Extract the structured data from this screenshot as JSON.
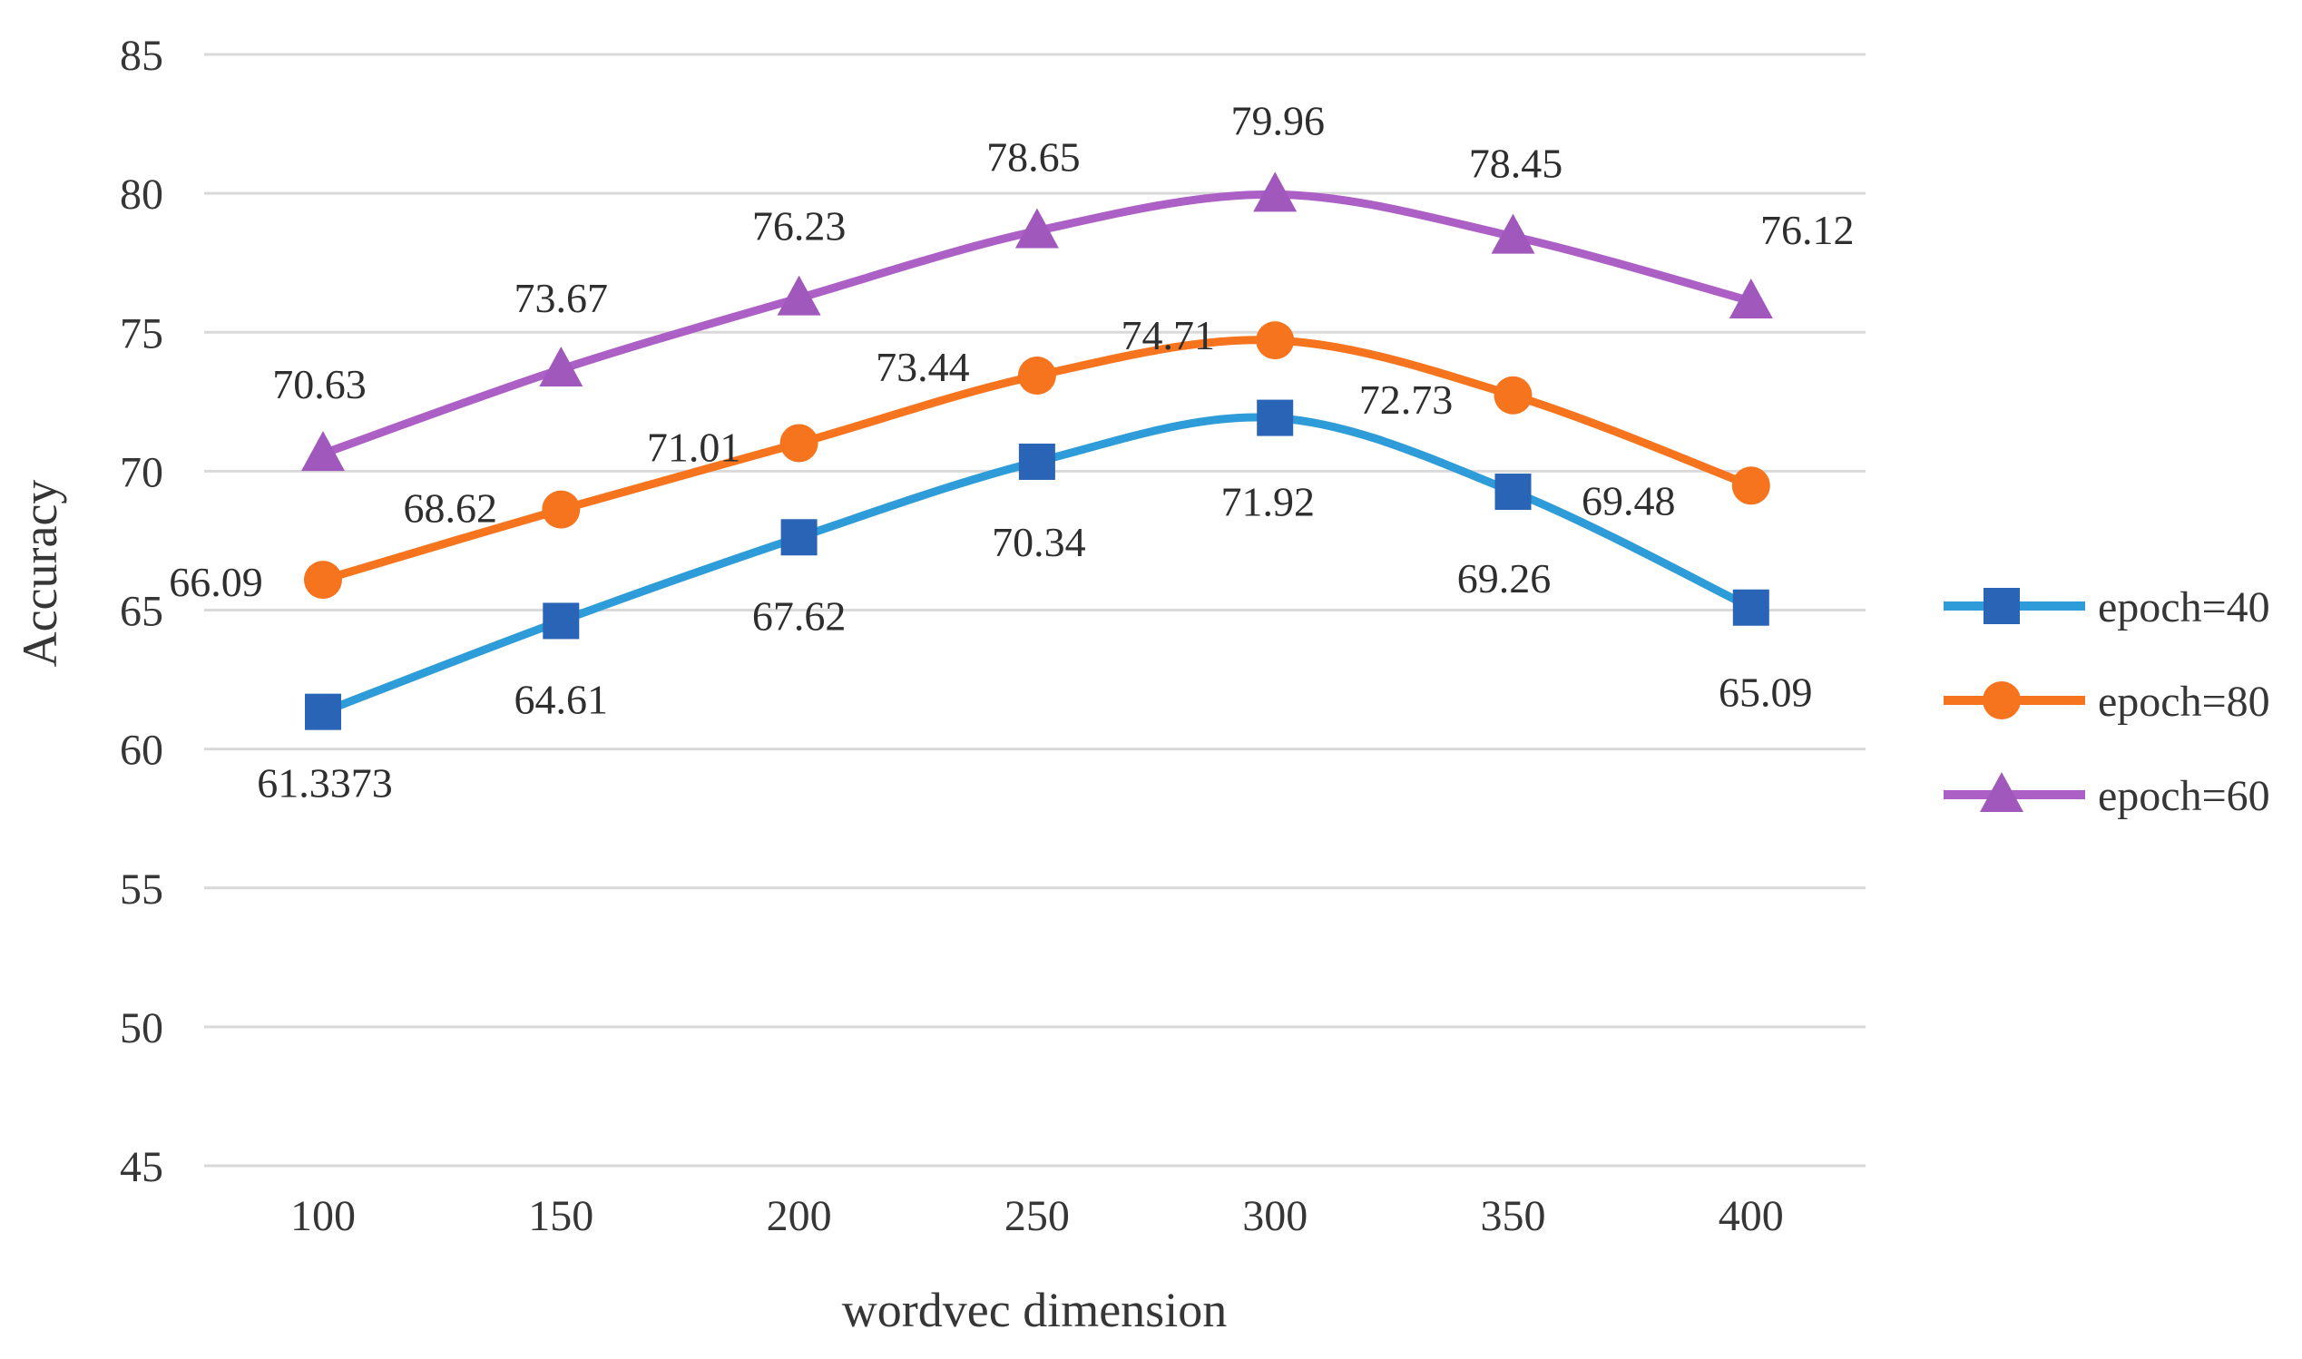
{
  "chart_data": {
    "type": "line",
    "title": "",
    "xlabel": "wordvec dimension",
    "ylabel": "Accuracy",
    "categories": [
      "100",
      "150",
      "200",
      "250",
      "300",
      "350",
      "400"
    ],
    "x_values": [
      100,
      150,
      200,
      250,
      300,
      350,
      400
    ],
    "ylim": [
      45,
      85
    ],
    "yticks": [
      "45",
      "50",
      "55",
      "60",
      "65",
      "70",
      "75",
      "80",
      "85"
    ],
    "grid": "horizontal",
    "grid_color": "#d9d9d9",
    "line_smoothing": true,
    "legend_position": "right",
    "series": [
      {
        "name": "epoch=40",
        "marker": "square",
        "line_color": "#2e9cd8",
        "marker_color": "#2a64b6",
        "values": [
          61.3373,
          64.61,
          67.62,
          70.34,
          71.92,
          69.26,
          65.09
        ],
        "labels": [
          "61.3373",
          "64.61",
          "67.62",
          "70.34",
          "71.92",
          "69.26",
          "65.09"
        ],
        "label_offsets": [
          [
            2,
            78
          ],
          [
            0,
            86
          ],
          [
            0,
            86
          ],
          [
            2,
            88
          ],
          [
            -8,
            92
          ],
          [
            -10,
            95
          ],
          [
            16,
            93
          ]
        ]
      },
      {
        "name": "epoch=80",
        "marker": "circle",
        "line_color": "#f6741d",
        "marker_color": "#f6741d",
        "values": [
          66.09,
          68.62,
          71.01,
          73.44,
          74.71,
          72.73,
          69.48
        ],
        "labels": [
          "66.09",
          "68.62",
          "71.01",
          "73.44",
          "74.71",
          "72.73",
          "69.48"
        ],
        "label_offsets": [
          [
            -118,
            2
          ],
          [
            -122,
            -2
          ],
          [
            -116,
            4
          ],
          [
            -126,
            -10
          ],
          [
            -118,
            -6
          ],
          [
            -118,
            4
          ],
          [
            -135,
            16
          ]
        ]
      },
      {
        "name": "epoch=60",
        "marker": "triangle",
        "line_color": "#ac5fc5",
        "marker_color": "#a158bc",
        "values": [
          70.63,
          73.67,
          76.23,
          78.65,
          79.96,
          78.45,
          76.12
        ],
        "labels": [
          "70.63",
          "73.67",
          "76.23",
          "78.65",
          "79.96",
          "78.45",
          "76.12"
        ],
        "label_offsets": [
          [
            -4,
            -77
          ],
          [
            0,
            -79
          ],
          [
            0,
            -80
          ],
          [
            -4,
            -82
          ],
          [
            3,
            -82
          ],
          [
            3,
            -81
          ],
          [
            62,
            -79
          ]
        ]
      }
    ],
    "legend": [
      "epoch=40",
      "epoch=80",
      "epoch=60"
    ]
  }
}
